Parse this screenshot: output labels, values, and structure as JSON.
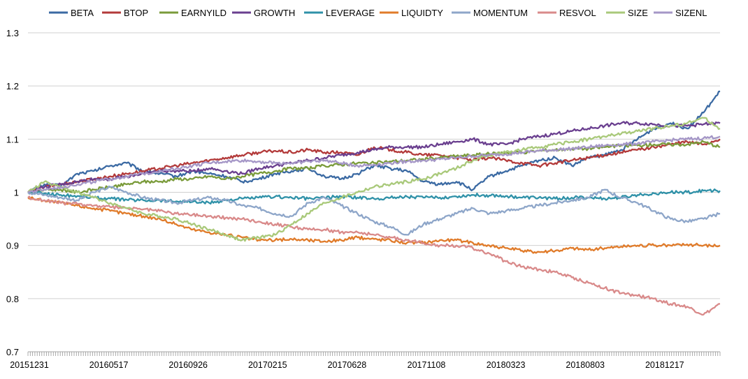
{
  "chart_data": {
    "type": "line",
    "title": "",
    "xlabel": "",
    "ylabel": "",
    "ylim": [
      0.7,
      1.3
    ],
    "yticks": [
      0.7,
      0.8,
      0.9,
      1.0,
      1.1,
      1.2,
      1.3
    ],
    "ytick_labels": [
      "0.7",
      "0.8",
      "0.9",
      "1",
      "1.1",
      "1.2",
      "1.3"
    ],
    "xtick_labels": [
      "20151231",
      "20160517",
      "20160926",
      "20170215",
      "20170628",
      "20171108",
      "20180323",
      "20180803",
      "20181217"
    ],
    "n_points": 43,
    "grid": "horizontal",
    "legend_position": "top",
    "series": [
      {
        "name": "BETA",
        "color": "#3b6aa3",
        "values": [
          1.0,
          1.015,
          1.012,
          1.035,
          1.04,
          1.05,
          1.055,
          1.04,
          1.035,
          1.03,
          1.04,
          1.035,
          1.03,
          1.02,
          1.025,
          1.035,
          1.04,
          1.045,
          1.03,
          1.025,
          1.035,
          1.05,
          1.045,
          1.04,
          1.02,
          1.015,
          1.02,
          1.005,
          1.03,
          1.04,
          1.05,
          1.06,
          1.065,
          1.05,
          1.065,
          1.07,
          1.08,
          1.1,
          1.12,
          1.13,
          1.12,
          1.15,
          1.19
        ]
      },
      {
        "name": "BTOP",
        "color": "#b33a3a",
        "values": [
          1.0,
          1.01,
          1.015,
          1.02,
          1.025,
          1.03,
          1.035,
          1.04,
          1.045,
          1.05,
          1.055,
          1.06,
          1.065,
          1.07,
          1.075,
          1.078,
          1.075,
          1.08,
          1.075,
          1.075,
          1.07,
          1.085,
          1.08,
          1.075,
          1.07,
          1.07,
          1.065,
          1.06,
          1.065,
          1.06,
          1.055,
          1.05,
          1.055,
          1.06,
          1.065,
          1.07,
          1.075,
          1.08,
          1.085,
          1.09,
          1.095,
          1.09,
          1.1
        ]
      },
      {
        "name": "EARNYILD",
        "color": "#7a9b3a",
        "values": [
          1.0,
          1.005,
          1.005,
          1.0,
          1.005,
          1.01,
          1.015,
          1.02,
          1.02,
          1.025,
          1.025,
          1.03,
          1.025,
          1.03,
          1.035,
          1.04,
          1.045,
          1.045,
          1.05,
          1.052,
          1.055,
          1.055,
          1.058,
          1.06,
          1.062,
          1.065,
          1.068,
          1.07,
          1.072,
          1.075,
          1.075,
          1.078,
          1.08,
          1.082,
          1.082,
          1.085,
          1.088,
          1.088,
          1.09,
          1.09,
          1.09,
          1.095,
          1.085
        ]
      },
      {
        "name": "GROWTH",
        "color": "#6a3f8f",
        "values": [
          1.0,
          1.01,
          1.015,
          1.02,
          1.025,
          1.025,
          1.03,
          1.035,
          1.04,
          1.04,
          1.04,
          1.045,
          1.04,
          1.035,
          1.045,
          1.05,
          1.055,
          1.06,
          1.065,
          1.07,
          1.075,
          1.08,
          1.085,
          1.085,
          1.085,
          1.09,
          1.095,
          1.1,
          1.09,
          1.09,
          1.1,
          1.105,
          1.11,
          1.115,
          1.12,
          1.125,
          1.13,
          1.13,
          1.128,
          1.125,
          1.125,
          1.128,
          1.13
        ]
      },
      {
        "name": "LEVERAGE",
        "color": "#2f91a8",
        "values": [
          1.0,
          0.998,
          0.995,
          0.993,
          0.99,
          0.988,
          0.986,
          0.985,
          0.985,
          0.983,
          0.982,
          0.98,
          0.985,
          0.988,
          0.99,
          0.992,
          0.99,
          0.988,
          0.99,
          0.992,
          0.99,
          0.988,
          0.99,
          0.992,
          0.99,
          0.99,
          0.992,
          0.995,
          0.994,
          0.993,
          0.99,
          0.99,
          0.988,
          0.99,
          0.99,
          0.988,
          0.99,
          0.995,
          0.998,
          1.0,
          1.0,
          1.003,
          1.003
        ]
      },
      {
        "name": "LIQUIDTY",
        "color": "#e07b2a",
        "values": [
          0.99,
          0.985,
          0.98,
          0.975,
          0.97,
          0.965,
          0.96,
          0.955,
          0.95,
          0.94,
          0.93,
          0.925,
          0.92,
          0.915,
          0.91,
          0.91,
          0.912,
          0.91,
          0.908,
          0.91,
          0.915,
          0.912,
          0.91,
          0.905,
          0.905,
          0.91,
          0.91,
          0.905,
          0.9,
          0.895,
          0.89,
          0.888,
          0.89,
          0.895,
          0.892,
          0.895,
          0.898,
          0.9,
          0.9,
          0.9,
          0.902,
          0.9,
          0.9
        ]
      },
      {
        "name": "MOMENTUM",
        "color": "#8ea6c9",
        "values": [
          1.0,
          0.995,
          0.99,
          0.985,
          1.0,
          1.01,
          1.0,
          0.99,
          0.985,
          0.98,
          0.985,
          0.99,
          0.985,
          0.975,
          0.97,
          0.96,
          0.955,
          0.98,
          0.99,
          0.975,
          0.96,
          0.945,
          0.935,
          0.92,
          0.94,
          0.95,
          0.96,
          0.97,
          0.96,
          0.965,
          0.97,
          0.975,
          0.98,
          0.985,
          0.99,
          1.005,
          0.99,
          0.98,
          0.965,
          0.95,
          0.945,
          0.95,
          0.96
        ]
      },
      {
        "name": "RESVOL",
        "color": "#d98a8a",
        "values": [
          0.99,
          0.985,
          0.98,
          0.978,
          0.975,
          0.972,
          0.97,
          0.968,
          0.965,
          0.96,
          0.958,
          0.955,
          0.952,
          0.95,
          0.945,
          0.94,
          0.935,
          0.93,
          0.93,
          0.925,
          0.925,
          0.92,
          0.915,
          0.91,
          0.905,
          0.9,
          0.9,
          0.895,
          0.885,
          0.87,
          0.86,
          0.855,
          0.85,
          0.84,
          0.83,
          0.82,
          0.81,
          0.805,
          0.8,
          0.79,
          0.785,
          0.77,
          0.79
        ]
      },
      {
        "name": "SIZE",
        "color": "#a9c97a",
        "values": [
          1.0,
          1.02,
          1.01,
          1.0,
          0.99,
          0.98,
          0.97,
          0.96,
          0.955,
          0.95,
          0.94,
          0.93,
          0.92,
          0.91,
          0.915,
          0.92,
          0.94,
          0.96,
          0.98,
          0.99,
          1.0,
          1.01,
          1.015,
          1.02,
          1.025,
          1.035,
          1.045,
          1.06,
          1.07,
          1.075,
          1.08,
          1.085,
          1.09,
          1.095,
          1.1,
          1.105,
          1.11,
          1.115,
          1.12,
          1.125,
          1.13,
          1.14,
          1.12
        ]
      },
      {
        "name": "SIZENL",
        "color": "#a597c7",
        "values": [
          1.0,
          1.005,
          1.01,
          1.015,
          1.02,
          1.025,
          1.03,
          1.035,
          1.04,
          1.045,
          1.05,
          1.055,
          1.058,
          1.06,
          1.058,
          1.055,
          1.055,
          1.058,
          1.06,
          1.055,
          1.05,
          1.052,
          1.055,
          1.058,
          1.06,
          1.062,
          1.065,
          1.068,
          1.07,
          1.072,
          1.075,
          1.078,
          1.08,
          1.082,
          1.085,
          1.088,
          1.09,
          1.092,
          1.095,
          1.098,
          1.1,
          1.102,
          1.105
        ]
      }
    ]
  }
}
